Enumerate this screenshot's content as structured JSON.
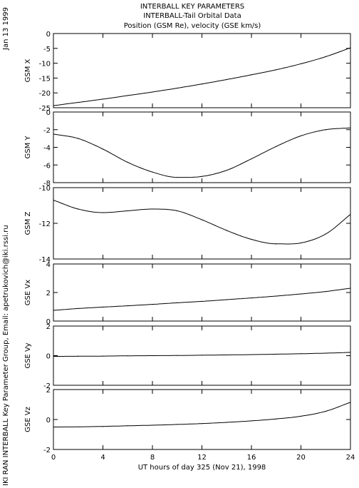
{
  "header": {
    "title_lines": [
      "INTERBALL KEY PARAMETERS",
      "INTERBALL-Tail Orbital Data",
      "Position (GSM Re), velocity (GSE km/s)"
    ],
    "date": "Jan 13 1999",
    "credit": "IKI RAN INTERBALL Key Parameter Group, Email: apetrukovich@iki.rssi.ru"
  },
  "chart_data": {
    "type": "line",
    "xlabel": "UT hours of day 325 (Nov 21), 1998",
    "xlim": [
      0,
      24
    ],
    "xticks": [
      0,
      4,
      8,
      12,
      16,
      20,
      24
    ],
    "x": [
      0,
      2,
      4,
      6,
      8,
      10,
      12,
      14,
      16,
      18,
      20,
      22,
      24
    ],
    "panels": [
      {
        "ylabel": "GSM X",
        "ylim": [
          -25,
          0
        ],
        "yticks": [
          0,
          -5,
          -10,
          -15,
          -20,
          -25
        ],
        "values": [
          -24.3,
          -23.2,
          -22.1,
          -20.9,
          -19.7,
          -18.4,
          -17.0,
          -15.5,
          -13.9,
          -12.2,
          -10.2,
          -7.8,
          -4.8
        ]
      },
      {
        "ylabel": "GSM Y",
        "ylim": [
          -8,
          0
        ],
        "yticks": [
          0,
          -2,
          -4,
          -6,
          -8
        ],
        "values": [
          -2.5,
          -3.0,
          -4.2,
          -5.7,
          -6.8,
          -7.4,
          -7.3,
          -6.6,
          -5.3,
          -3.9,
          -2.7,
          -2.0,
          -1.8
        ]
      },
      {
        "ylabel": "GSM Z",
        "ylim": [
          -14,
          -10
        ],
        "yticks": [
          -10,
          -12,
          -14
        ],
        "values": [
          -10.7,
          -11.2,
          -11.4,
          -11.3,
          -11.2,
          -11.3,
          -11.8,
          -12.4,
          -12.9,
          -13.15,
          -13.1,
          -12.6,
          -11.5
        ]
      },
      {
        "ylabel": "GSE Vx",
        "ylim": [
          0,
          4
        ],
        "yticks": [
          4,
          2,
          0
        ],
        "values": [
          0.75,
          0.88,
          0.98,
          1.07,
          1.17,
          1.28,
          1.38,
          1.5,
          1.62,
          1.75,
          1.9,
          2.07,
          2.3
        ]
      },
      {
        "ylabel": "GSE Vy",
        "ylim": [
          -2,
          2
        ],
        "yticks": [
          2,
          0,
          -2
        ],
        "values": [
          -0.05,
          -0.04,
          -0.03,
          -0.01,
          0.0,
          0.01,
          0.03,
          0.05,
          0.07,
          0.1,
          0.13,
          0.17,
          0.22
        ]
      },
      {
        "ylabel": "GSE Vz",
        "ylim": [
          -2,
          2
        ],
        "yticks": [
          2,
          0,
          -2
        ],
        "values": [
          -0.5,
          -0.49,
          -0.46,
          -0.42,
          -0.38,
          -0.33,
          -0.27,
          -0.19,
          -0.09,
          0.04,
          0.22,
          0.55,
          1.15
        ]
      }
    ]
  }
}
